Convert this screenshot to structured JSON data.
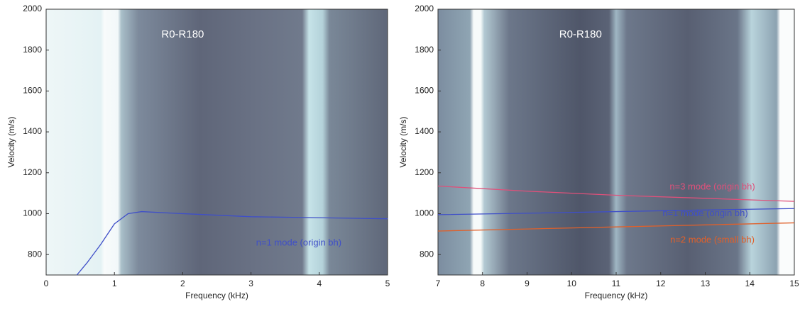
{
  "chart_data": [
    {
      "type": "line",
      "title": "R0-R180",
      "x_label": "Frequency (kHz)",
      "y_label": "Velocity (m/s)",
      "xlim": [
        0,
        5
      ],
      "xticks": [
        0,
        1,
        2,
        3,
        4,
        5
      ],
      "ylim": [
        700,
        2000
      ],
      "yticks": [
        800,
        1000,
        1200,
        1400,
        1600,
        1800,
        2000
      ],
      "series": [
        {
          "name": "n=1 mode (origin bh)",
          "color": "#3f4fc8",
          "x": [
            0.45,
            0.6,
            0.8,
            1.0,
            1.2,
            1.4,
            2,
            3,
            4,
            5
          ],
          "values": [
            700,
            760,
            850,
            950,
            1000,
            1010,
            1000,
            985,
            980,
            975
          ]
        }
      ]
    },
    {
      "type": "line",
      "title": "R0-R180",
      "x_label": "Frequency (kHz)",
      "y_label": "Velocity (m/s)",
      "xlim": [
        7,
        15
      ],
      "xticks": [
        7,
        8,
        9,
        10,
        11,
        12,
        13,
        14,
        15
      ],
      "ylim": [
        700,
        2000
      ],
      "yticks": [
        800,
        1000,
        1200,
        1400,
        1600,
        1800,
        2000
      ],
      "series": [
        {
          "name": "n=3 mode (origin bh)",
          "color": "#e0507a",
          "x": [
            7,
            9,
            11,
            13,
            15
          ],
          "values": [
            1135,
            1110,
            1090,
            1075,
            1060
          ]
        },
        {
          "name": "n=1 mode (origin bh)",
          "color": "#3f4fc8",
          "x": [
            7,
            9,
            11,
            13,
            15
          ],
          "values": [
            995,
            1002,
            1010,
            1018,
            1025
          ]
        },
        {
          "name": "n=2 mode (small bh)",
          "color": "#e0602a",
          "x": [
            7,
            9,
            11,
            13,
            15
          ],
          "values": [
            915,
            925,
            935,
            945,
            955
          ]
        }
      ]
    }
  ]
}
